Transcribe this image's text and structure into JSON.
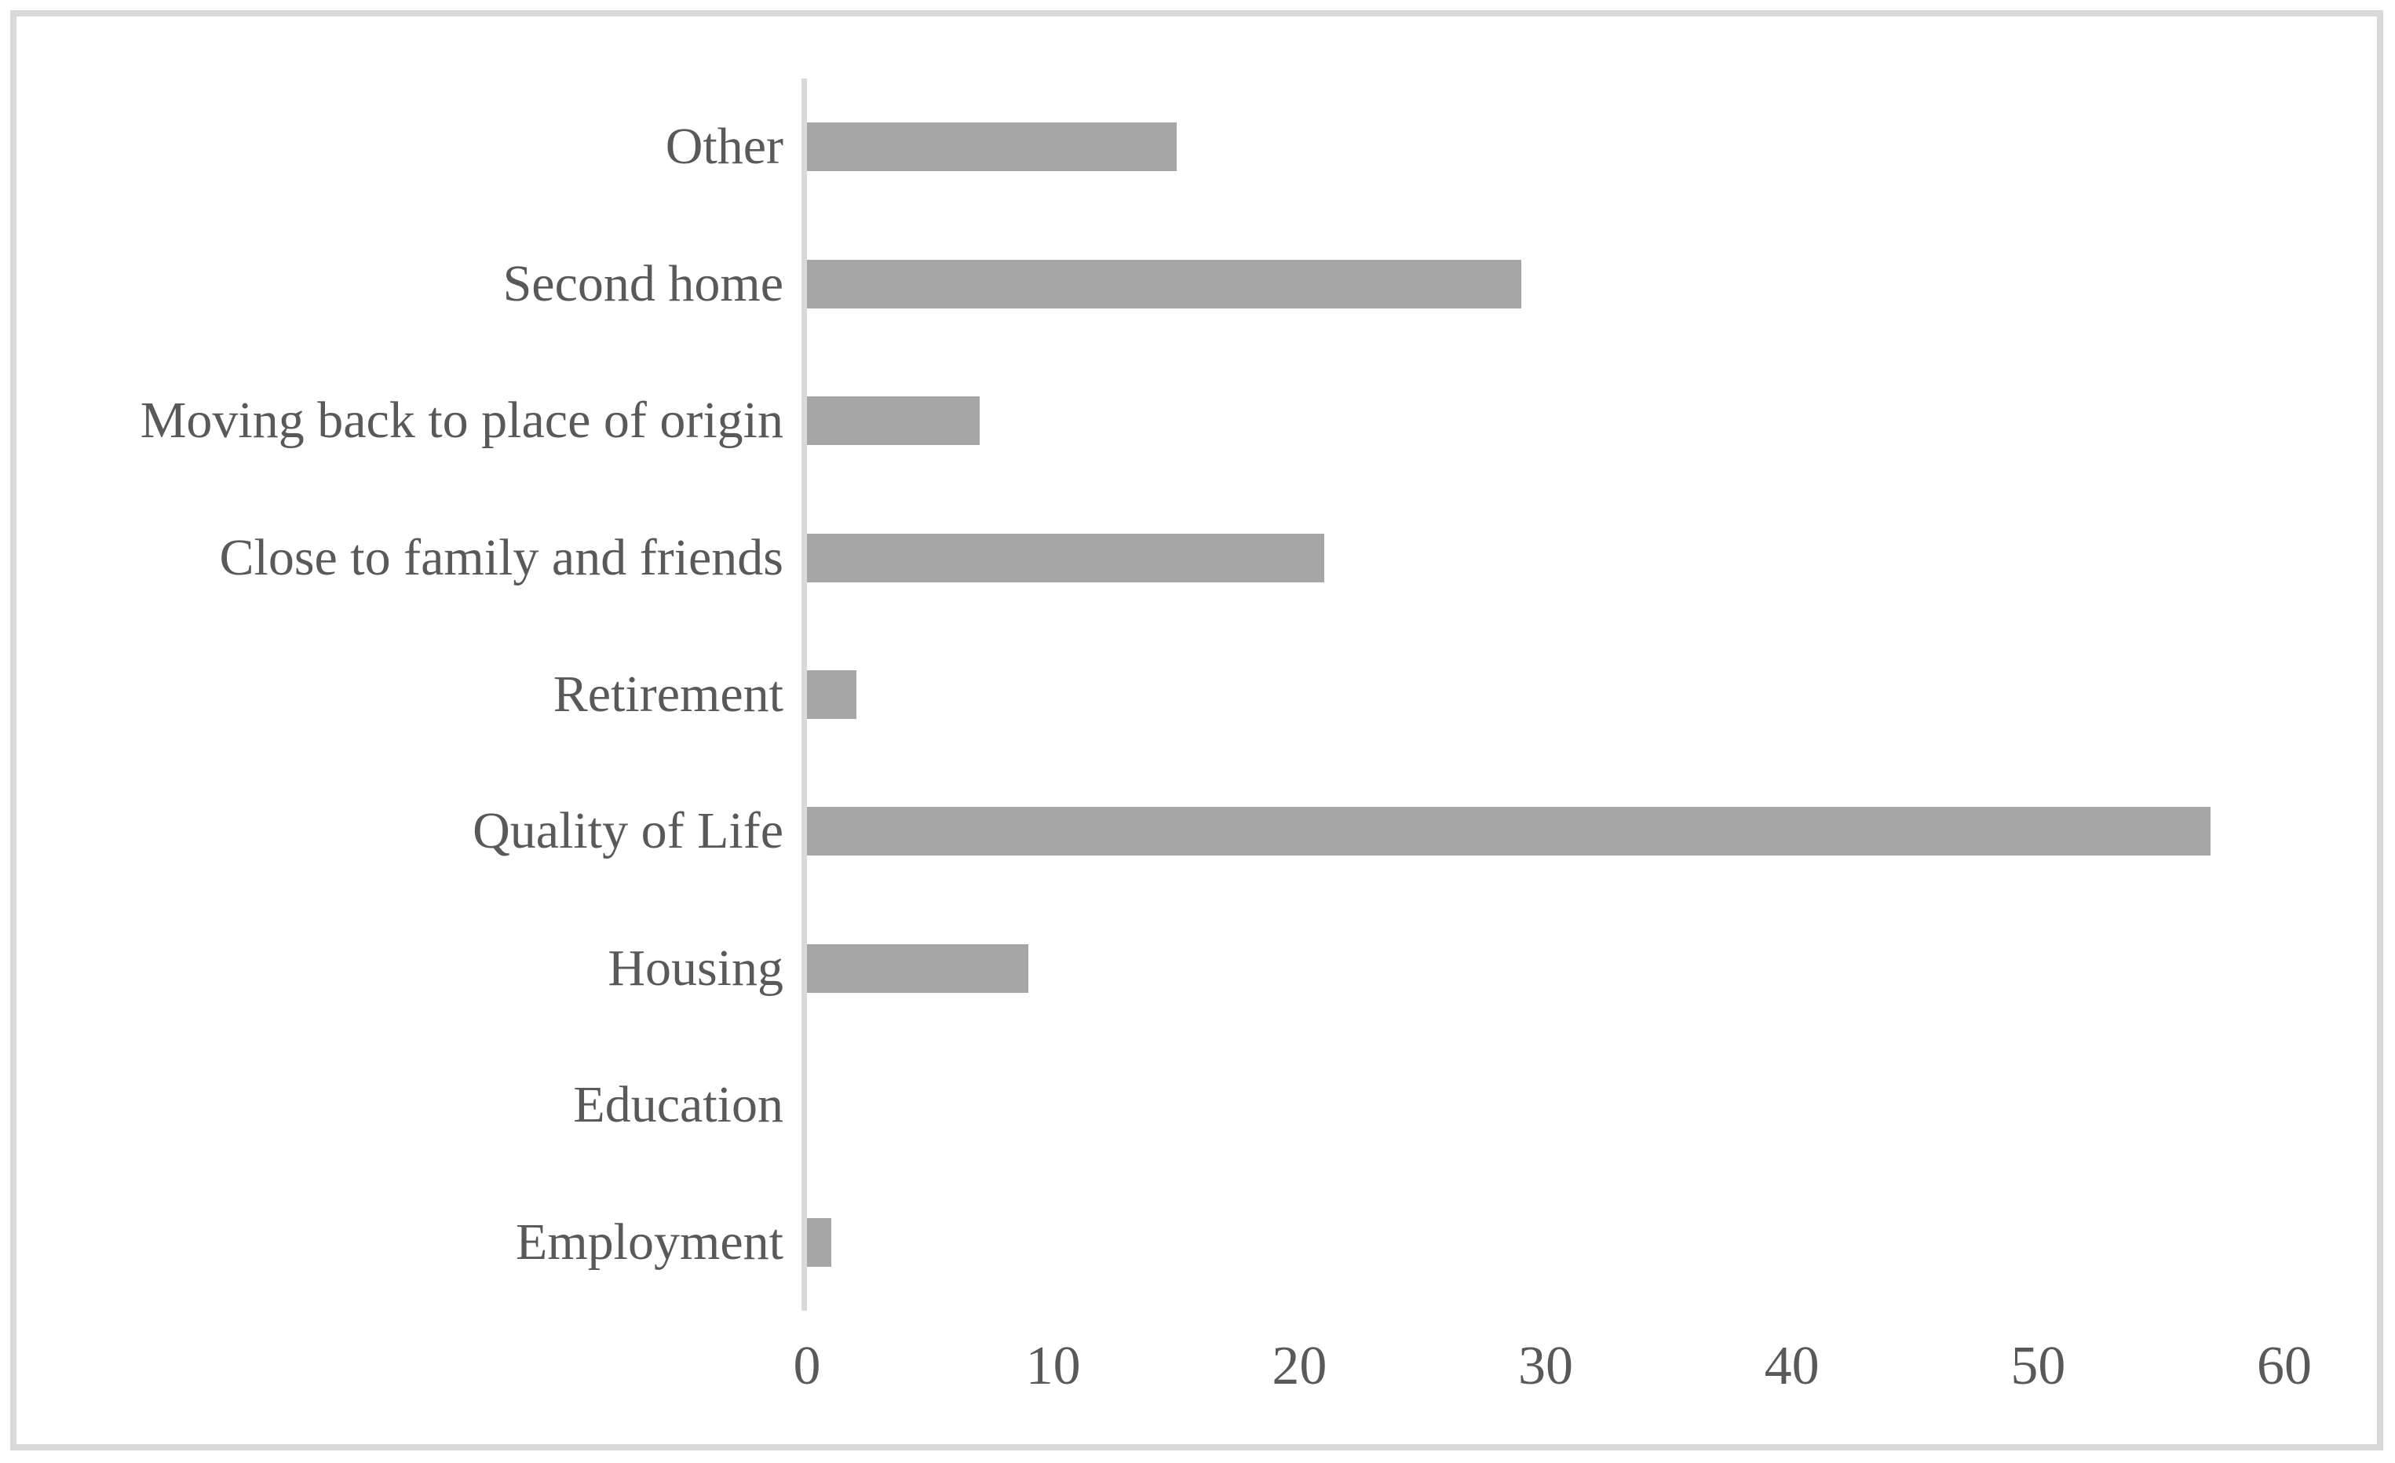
{
  "colors": {
    "bar": "#a6a6a6",
    "axis_line": "#d9d9d9",
    "frame_border": "#d9d9d9",
    "text": "#595959",
    "background": "#ffffff"
  },
  "chart_data": {
    "type": "bar",
    "orientation": "horizontal",
    "title": "",
    "xlabel": "",
    "ylabel": "",
    "categories": [
      "Other",
      "Second home",
      "Moving back to place of origin",
      "Close to family and friends",
      "Retirement",
      "Quality of Life",
      "Housing",
      "Education",
      "Employment"
    ],
    "values": [
      15,
      29,
      7,
      21,
      2,
      57,
      9,
      0,
      1
    ],
    "xlim": [
      0,
      60
    ],
    "xticks": [
      0,
      10,
      20,
      30,
      40,
      50,
      60
    ],
    "grid": "off",
    "legend": "none"
  }
}
